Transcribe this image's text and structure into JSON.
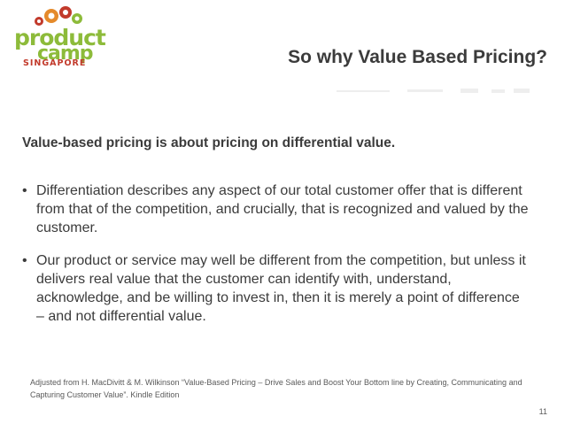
{
  "logo": {
    "product": "product",
    "camp": "camp",
    "location": "SINGAPORE",
    "colors": {
      "green": "#8dbb3a",
      "red": "#c23a2b",
      "orange": "#e58a2b"
    }
  },
  "slide": {
    "title": "So why Value Based Pricing?",
    "lead": "Value-based pricing is about pricing on differential value.",
    "bullets": [
      "Differentiation describes any aspect of our total customer offer that is different from that of the competition, and crucially, that is recognized and valued by the customer.",
      "Our product or service may well be different from the competition, but unless it delivers real value that the customer can identify with, understand, acknowledge, and be willing to invest in, then it is merely a point of difference – and not differential value."
    ],
    "bullet_marker": "•",
    "source": "Adjusted from H. MacDivitt & M. Wilkinson “Value-Based Pricing – Drive Sales and Boost Your Bottom line by Creating, Communicating and Capturing Customer Value”. Kindle Edition",
    "page_number": "11"
  },
  "colors": {
    "text": "#3b3b3b",
    "background": "#ffffff"
  }
}
